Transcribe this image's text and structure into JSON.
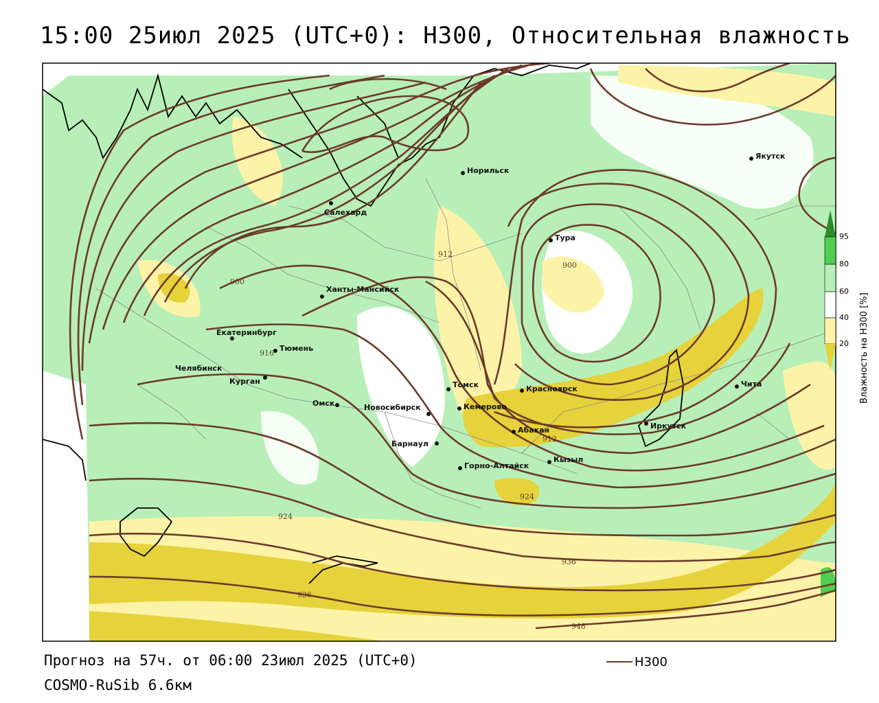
{
  "title": "15:00 25июл 2025 (UTC+0): H300, Относительная влажность",
  "forecast_text": "Прогноз на 57ч. от 06:00 23июл 2025 (UTC+0)",
  "model_text": "COSMO-RuSib 6.6км",
  "legend": {
    "line_label": "H300",
    "line_color": "#6b3a2a"
  },
  "colorbar": {
    "title": "Влажность на H300 [%]",
    "ticks": [
      "95",
      "80",
      "60",
      "40",
      "20"
    ],
    "colors": [
      "#2e8b2e",
      "#4fcf4f",
      "#b8efb8",
      "#ffffff",
      "#fdf3a8",
      "#e6d23a"
    ]
  },
  "cities": [
    {
      "name": "Якутск"
    },
    {
      "name": "Норильск"
    },
    {
      "name": "Салехард"
    },
    {
      "name": "Тура"
    },
    {
      "name": "Ханты-Мансийск"
    },
    {
      "name": "Екатеринбург"
    },
    {
      "name": "Тюмень"
    },
    {
      "name": "Челябинск"
    },
    {
      "name": "Курган"
    },
    {
      "name": "Омск"
    },
    {
      "name": "Новосибирск"
    },
    {
      "name": "Томск"
    },
    {
      "name": "Кемерово"
    },
    {
      "name": "Красноярск"
    },
    {
      "name": "Абакан"
    },
    {
      "name": "Барнаул"
    },
    {
      "name": "Горно-Алтайск"
    },
    {
      "name": "Кызыл"
    },
    {
      "name": "Иркутск"
    },
    {
      "name": "Чита"
    }
  ],
  "contour_labels": [
    "900",
    "912",
    "900",
    "916",
    "912",
    "924",
    "924",
    "936",
    "936",
    "948"
  ],
  "colors": {
    "contour": "#6b3a2a",
    "land_green": "#b8efb8",
    "dry_yellow": "#fdf3a8",
    "very_dry": "#e6d23a"
  }
}
